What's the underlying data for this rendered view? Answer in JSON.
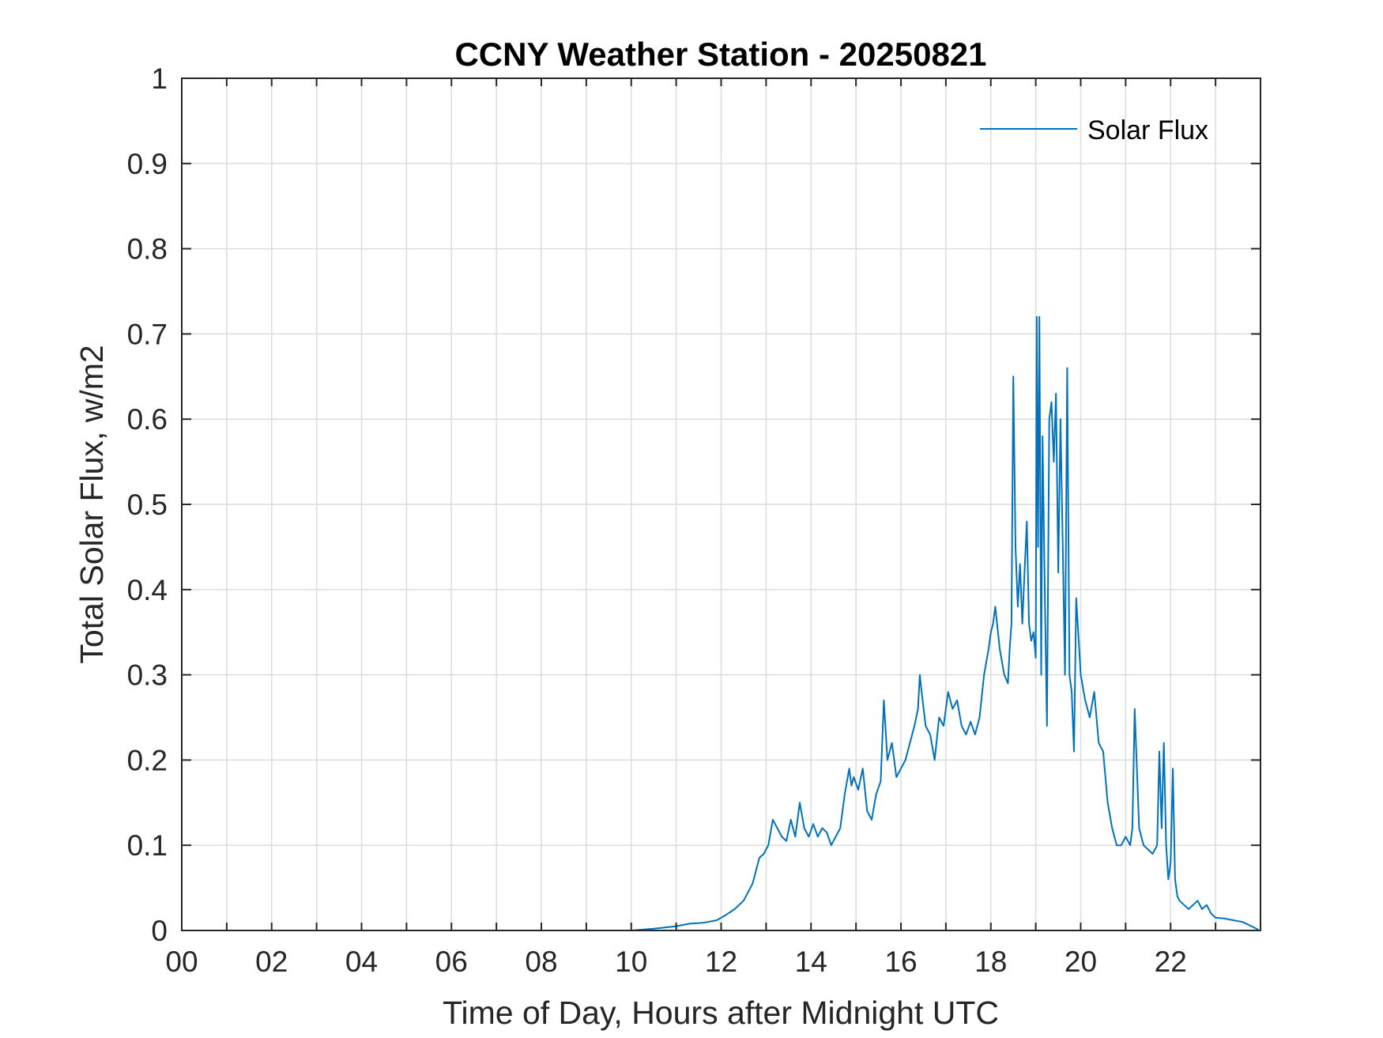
{
  "chart_data": {
    "type": "line",
    "title": "CCNY Weather Station - 20250821",
    "xlabel": "Time of Day, Hours after Midnight UTC",
    "ylabel": "Total Solar Flux, w/m2",
    "xlim": [
      0,
      24
    ],
    "ylim": [
      0,
      1
    ],
    "x_ticks": [
      0,
      2,
      4,
      6,
      8,
      10,
      12,
      14,
      16,
      18,
      20,
      22
    ],
    "x_tick_labels": [
      "00",
      "02",
      "04",
      "06",
      "08",
      "10",
      "12",
      "14",
      "16",
      "18",
      "20",
      "22"
    ],
    "y_ticks": [
      0,
      0.1,
      0.2,
      0.3,
      0.4,
      0.5,
      0.6,
      0.7,
      0.8,
      0.9,
      1
    ],
    "y_tick_labels": [
      "0",
      "0.1",
      "0.2",
      "0.3",
      "0.4",
      "0.5",
      "0.6",
      "0.7",
      "0.8",
      "0.9",
      "1"
    ],
    "grid": true,
    "legend_position": "top-right",
    "series": [
      {
        "name": "Solar Flux",
        "color": "#0072BD",
        "x": [
          0,
          10.0,
          10.5,
          11.0,
          11.3,
          11.6,
          11.9,
          12.1,
          12.3,
          12.5,
          12.7,
          12.85,
          12.95,
          13.05,
          13.15,
          13.25,
          13.35,
          13.45,
          13.55,
          13.65,
          13.75,
          13.85,
          13.95,
          14.05,
          14.15,
          14.25,
          14.35,
          14.45,
          14.55,
          14.65,
          14.75,
          14.85,
          14.9,
          14.95,
          15.05,
          15.15,
          15.25,
          15.35,
          15.45,
          15.55,
          15.62,
          15.7,
          15.8,
          15.9,
          16.0,
          16.1,
          16.2,
          16.3,
          16.38,
          16.42,
          16.46,
          16.55,
          16.65,
          16.75,
          16.85,
          16.95,
          17.05,
          17.15,
          17.25,
          17.35,
          17.45,
          17.55,
          17.65,
          17.75,
          17.85,
          17.95,
          18.0,
          18.05,
          18.1,
          18.2,
          18.3,
          18.38,
          18.42,
          18.46,
          18.5,
          18.55,
          18.6,
          18.65,
          18.7,
          18.75,
          18.8,
          18.85,
          18.9,
          18.95,
          19.0,
          19.02,
          19.05,
          19.08,
          19.12,
          19.15,
          19.2,
          19.25,
          19.3,
          19.35,
          19.4,
          19.45,
          19.5,
          19.55,
          19.6,
          19.65,
          19.7,
          19.75,
          19.8,
          19.85,
          19.9,
          20.0,
          20.1,
          20.2,
          20.3,
          20.4,
          20.5,
          20.6,
          20.7,
          20.8,
          20.9,
          21.0,
          21.1,
          21.15,
          21.2,
          21.3,
          21.4,
          21.5,
          21.6,
          21.7,
          21.75,
          21.8,
          21.85,
          21.9,
          21.95,
          22.0,
          22.05,
          22.1,
          22.15,
          22.2,
          22.3,
          22.4,
          22.5,
          22.6,
          22.7,
          22.8,
          22.9,
          23.0,
          23.2,
          23.4,
          23.6,
          23.8,
          23.95
        ],
        "y": [
          0,
          0,
          0.002,
          0.005,
          0.008,
          0.009,
          0.012,
          0.018,
          0.025,
          0.035,
          0.055,
          0.085,
          0.09,
          0.1,
          0.13,
          0.12,
          0.11,
          0.105,
          0.13,
          0.11,
          0.15,
          0.12,
          0.11,
          0.125,
          0.11,
          0.12,
          0.115,
          0.1,
          0.11,
          0.12,
          0.16,
          0.19,
          0.17,
          0.18,
          0.165,
          0.19,
          0.14,
          0.13,
          0.16,
          0.175,
          0.27,
          0.2,
          0.22,
          0.18,
          0.19,
          0.2,
          0.22,
          0.24,
          0.26,
          0.3,
          0.28,
          0.24,
          0.23,
          0.2,
          0.25,
          0.24,
          0.28,
          0.26,
          0.27,
          0.24,
          0.23,
          0.245,
          0.23,
          0.25,
          0.3,
          0.33,
          0.35,
          0.36,
          0.38,
          0.33,
          0.3,
          0.29,
          0.33,
          0.36,
          0.65,
          0.45,
          0.38,
          0.43,
          0.36,
          0.42,
          0.48,
          0.36,
          0.34,
          0.35,
          0.32,
          0.72,
          0.45,
          0.72,
          0.3,
          0.58,
          0.4,
          0.24,
          0.6,
          0.62,
          0.55,
          0.63,
          0.42,
          0.6,
          0.45,
          0.3,
          0.66,
          0.3,
          0.28,
          0.21,
          0.39,
          0.3,
          0.27,
          0.25,
          0.28,
          0.22,
          0.21,
          0.15,
          0.12,
          0.1,
          0.1,
          0.11,
          0.1,
          0.12,
          0.26,
          0.12,
          0.1,
          0.095,
          0.09,
          0.1,
          0.21,
          0.12,
          0.22,
          0.1,
          0.06,
          0.08,
          0.19,
          0.06,
          0.04,
          0.035,
          0.03,
          0.025,
          0.03,
          0.035,
          0.025,
          0.03,
          0.02,
          0.015,
          0.014,
          0.012,
          0.01,
          0.005,
          0.001
        ]
      }
    ]
  }
}
